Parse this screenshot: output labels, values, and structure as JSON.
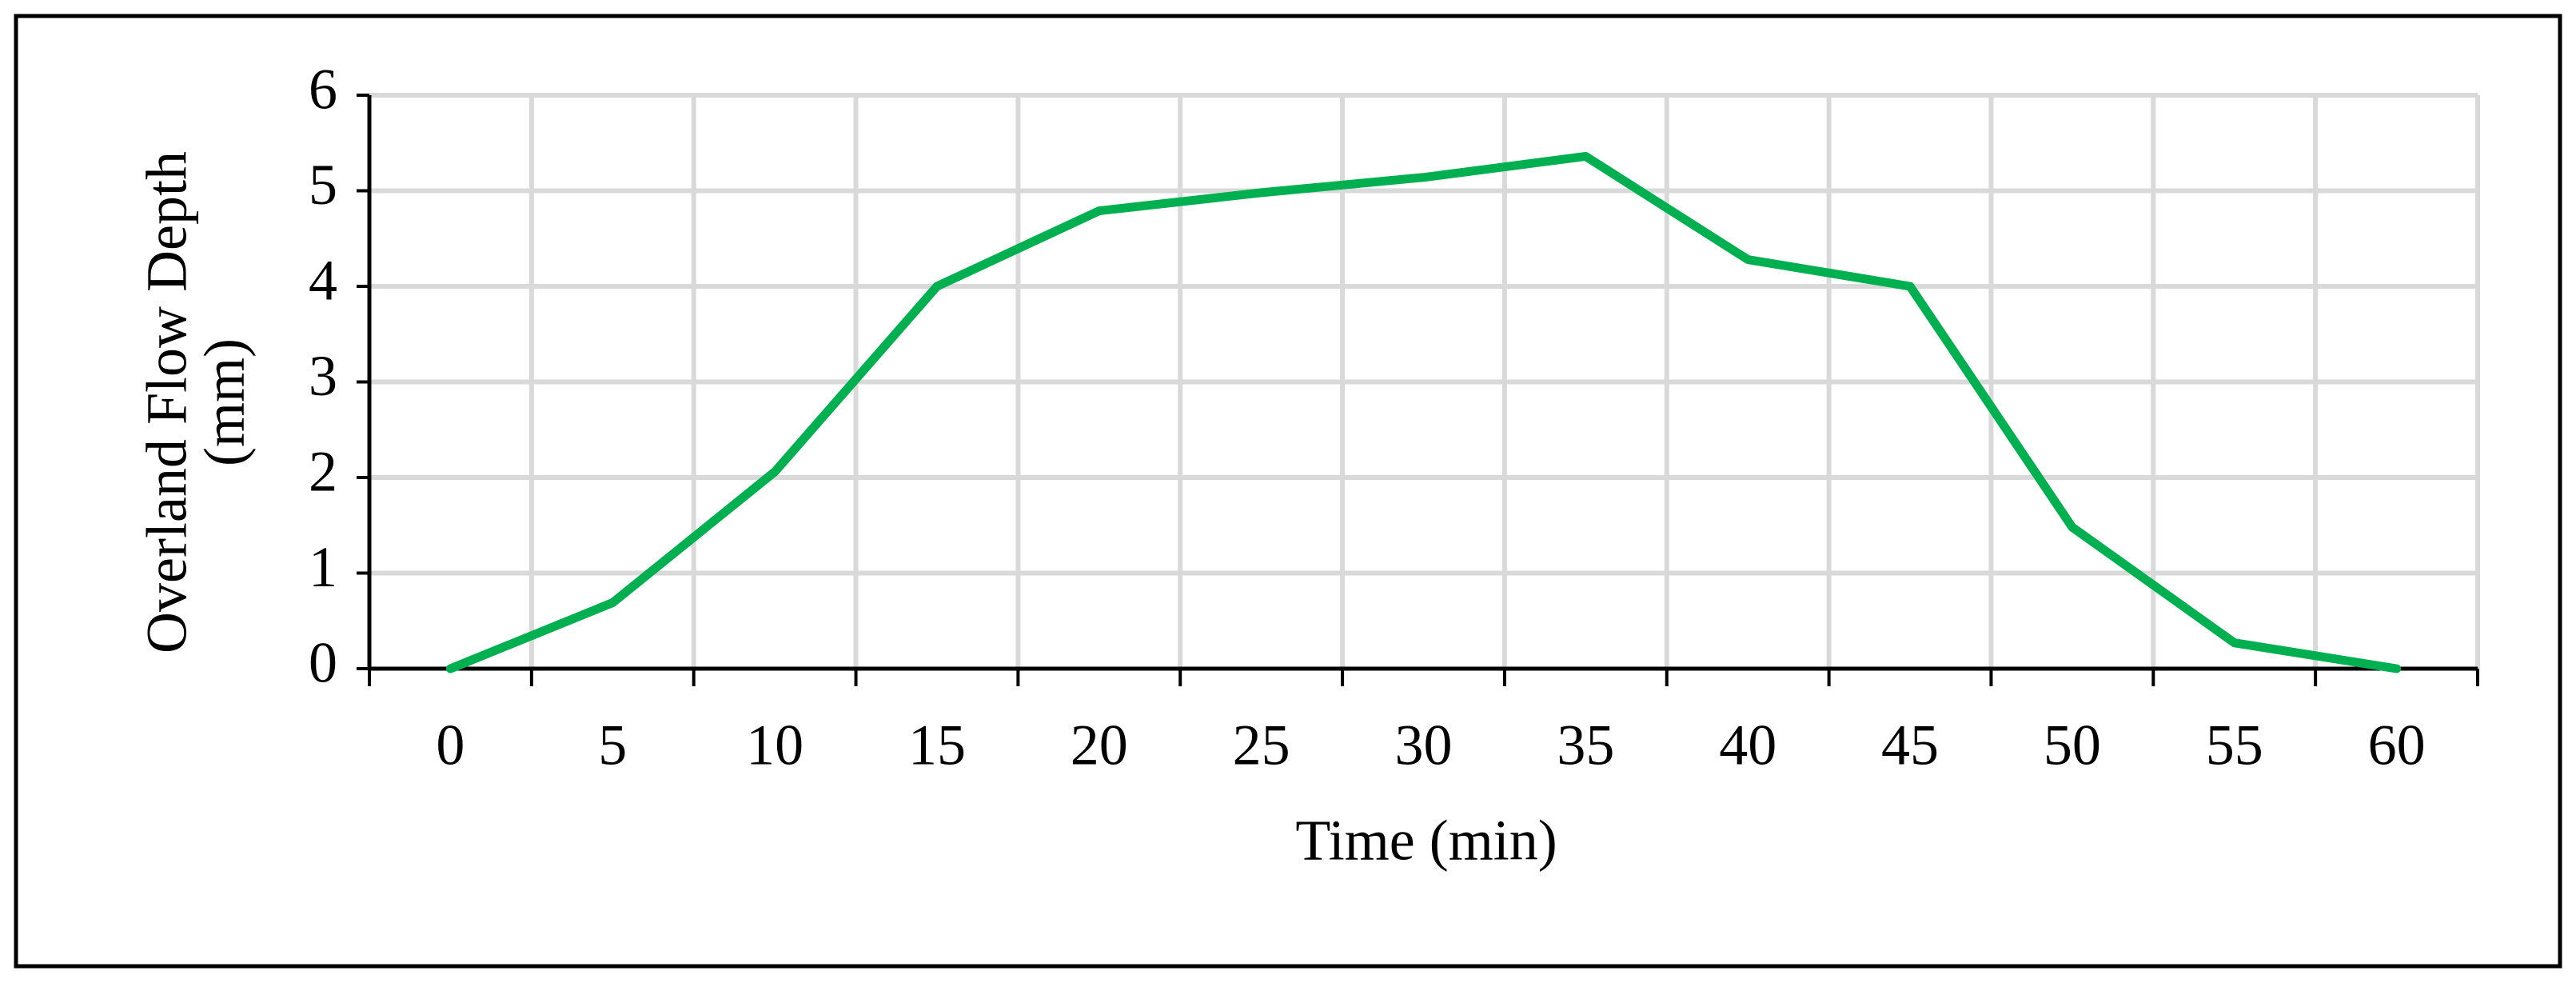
{
  "chart_data": {
    "type": "line",
    "categories": [
      "0",
      "5",
      "10",
      "15",
      "20",
      "25",
      "30",
      "35",
      "40",
      "45",
      "50",
      "55",
      "60"
    ],
    "series": [
      {
        "name": "Overland Flow Depth",
        "color": "#00b050",
        "values": [
          0,
          0.69,
          2.06,
          4.0,
          4.79,
          4.98,
          5.14,
          5.36,
          4.28,
          4.0,
          1.48,
          0.27,
          0
        ]
      }
    ],
    "x_label": "Time (min)",
    "y_label": [
      "Overland Flow Depth",
      "(mm)"
    ],
    "ylim": [
      0,
      6
    ],
    "yticks": [
      0,
      1,
      2,
      3,
      4,
      5,
      6
    ],
    "grid": true
  }
}
